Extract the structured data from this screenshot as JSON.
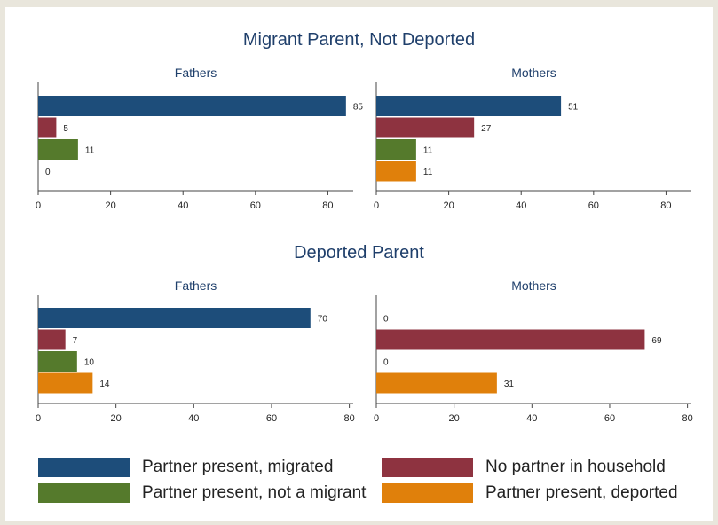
{
  "section_titles": [
    "Migrant Parent, Not Deported",
    "Deported Parent"
  ],
  "legend": [
    {
      "label": "Partner present, migrated",
      "color": "#1d4d7a"
    },
    {
      "label": "No partner in household",
      "color": "#8e3340"
    },
    {
      "label": "Partner present, not a migrant",
      "color": "#557a2c"
    },
    {
      "label": "Partner present, deported",
      "color": "#e0800b"
    }
  ],
  "chart_data": [
    {
      "type": "bar",
      "orientation": "horizontal",
      "section": "Migrant Parent, Not Deported",
      "title": "Fathers",
      "categories": [
        "Partner present, migrated",
        "No partner in household",
        "Partner present, not a migrant",
        "Partner present, deported"
      ],
      "values": [
        85,
        5,
        11,
        0
      ],
      "xlim": [
        0,
        87
      ],
      "xticks": [
        0,
        20,
        40,
        60,
        80
      ]
    },
    {
      "type": "bar",
      "orientation": "horizontal",
      "section": "Migrant Parent, Not Deported",
      "title": "Mothers",
      "categories": [
        "Partner present, migrated",
        "No partner in household",
        "Partner present, not a migrant",
        "Partner present, deported"
      ],
      "values": [
        51,
        27,
        11,
        11
      ],
      "xlim": [
        0,
        87
      ],
      "xticks": [
        0,
        20,
        40,
        60,
        80
      ]
    },
    {
      "type": "bar",
      "orientation": "horizontal",
      "section": "Deported Parent",
      "title": "Fathers",
      "categories": [
        "Partner present, migrated",
        "No partner in household",
        "Partner present, not a migrant",
        "Partner present, deported"
      ],
      "values": [
        70,
        7,
        10,
        14
      ],
      "xlim": [
        0,
        81
      ],
      "xticks": [
        0,
        20,
        40,
        60,
        80
      ]
    },
    {
      "type": "bar",
      "orientation": "horizontal",
      "section": "Deported Parent",
      "title": "Mothers",
      "categories": [
        "Partner present, migrated",
        "No partner in household",
        "Partner present, not a migrant",
        "Partner present, deported"
      ],
      "values": [
        0,
        69,
        0,
        31
      ],
      "xlim": [
        0,
        81
      ],
      "xticks": [
        0,
        20,
        40,
        60,
        80
      ]
    }
  ]
}
